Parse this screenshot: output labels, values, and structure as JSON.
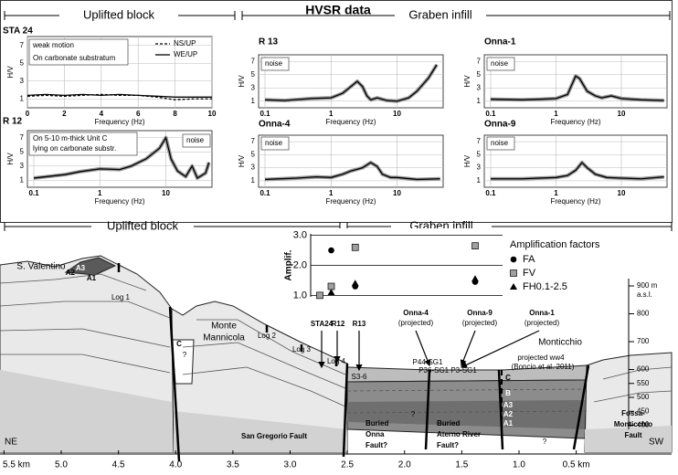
{
  "header": {
    "title": "HVSR data",
    "left_block": "Uplifted block",
    "right_block": "Graben infill"
  },
  "chart_data": [
    {
      "type": "line",
      "title": "STA 24",
      "xlabel": "Frequency (Hz)",
      "ylabel": "H/V",
      "x": [
        0,
        1,
        2,
        3,
        4,
        5,
        6,
        7,
        8,
        9,
        10
      ],
      "xscale": "linear",
      "xlim": [
        0,
        10
      ],
      "xticks": [
        0,
        2,
        4,
        6,
        8,
        10
      ],
      "ylim": [
        0,
        8
      ],
      "yticks": [
        1,
        3,
        5,
        7
      ],
      "grid": true,
      "annotations": [
        "weak motion",
        "On carbonate substratum"
      ],
      "series": [
        {
          "name": "NS/UP",
          "color": "#000000",
          "dash": true,
          "values": [
            1.3,
            1.4,
            1.3,
            1.4,
            1.5,
            1.4,
            1.4,
            1.2,
            0.9,
            1.0,
            1.0
          ]
        },
        {
          "name": "WE/UP",
          "color": "#000000",
          "values": [
            1.4,
            1.5,
            1.4,
            1.5,
            1.4,
            1.5,
            1.4,
            1.3,
            1.2,
            1.2,
            1.2
          ]
        }
      ]
    },
    {
      "type": "line",
      "title": "R 13",
      "xlabel": "Frequency (Hz)",
      "ylabel": "H/V",
      "x": [
        0.1,
        0.2,
        0.5,
        1,
        1.5,
        2,
        2.5,
        3,
        3.5,
        4,
        5,
        7,
        10,
        15,
        20,
        30,
        40
      ],
      "xscale": "log",
      "xlim": [
        0.08,
        50
      ],
      "xticks": [
        0.1,
        1,
        10
      ],
      "ylim": [
        0,
        8
      ],
      "yticks": [
        1,
        3,
        5,
        7
      ],
      "grid": true,
      "annotations": [
        "noise"
      ],
      "series": [
        {
          "color": "#000000",
          "shade": true,
          "values": [
            1.2,
            1.1,
            1.4,
            1.5,
            2.2,
            3.2,
            4.0,
            3.2,
            1.8,
            1.2,
            1.5,
            1.1,
            1.0,
            1.5,
            2.5,
            4.5,
            6.5
          ]
        }
      ]
    },
    {
      "type": "line",
      "title": "Onna-1",
      "xlabel": "Frequency (Hz)",
      "ylabel": "H/V",
      "x": [
        0.1,
        0.3,
        0.6,
        1,
        1.5,
        2,
        2.3,
        3,
        4,
        5,
        7,
        10,
        20,
        45
      ],
      "xscale": "log",
      "xlim": [
        0.08,
        50
      ],
      "xticks": [
        0.1,
        1,
        10
      ],
      "ylim": [
        0,
        8
      ],
      "yticks": [
        1,
        3,
        5,
        7
      ],
      "grid": true,
      "annotations": [
        "noise"
      ],
      "series": [
        {
          "color": "#000000",
          "shade": true,
          "values": [
            1.3,
            1.2,
            1.3,
            1.4,
            2.0,
            4.8,
            4.4,
            2.5,
            1.8,
            1.5,
            1.8,
            1.4,
            1.2,
            1.1
          ]
        }
      ]
    },
    {
      "type": "line",
      "title": "R 12",
      "xlabel": "Frequency (Hz)",
      "ylabel": "H/V",
      "x": [
        0.1,
        0.3,
        0.5,
        1,
        2,
        3,
        5,
        8,
        10,
        12,
        15,
        20,
        25,
        30,
        40,
        45
      ],
      "xscale": "log",
      "xlim": [
        0.08,
        50
      ],
      "xticks": [
        0.1,
        1,
        10
      ],
      "ylim": [
        0,
        8
      ],
      "yticks": [
        1,
        3,
        5,
        7
      ],
      "grid": true,
      "annotations": [
        "On 5-10 m-thick Unit C",
        "lying on carbonate substr.",
        "noise"
      ],
      "series": [
        {
          "color": "#000000",
          "shade": true,
          "values": [
            1.3,
            1.8,
            2.2,
            2.6,
            2.5,
            3.0,
            4.0,
            5.5,
            7.0,
            4.0,
            2.3,
            1.5,
            3.0,
            1.3,
            2.0,
            3.5
          ]
        }
      ]
    },
    {
      "type": "line",
      "title": "Onna-4",
      "xlabel": "Frequency (Hz)",
      "ylabel": "H/V",
      "x": [
        0.1,
        0.3,
        0.6,
        1,
        1.5,
        2,
        3,
        4,
        5,
        6,
        8,
        10,
        20,
        45
      ],
      "xscale": "log",
      "xlim": [
        0.08,
        50
      ],
      "xticks": [
        0.1,
        1,
        10
      ],
      "ylim": [
        0,
        8
      ],
      "yticks": [
        1,
        3,
        5,
        7
      ],
      "grid": true,
      "annotations": [
        "noise"
      ],
      "series": [
        {
          "color": "#000000",
          "shade": true,
          "values": [
            1.2,
            1.4,
            1.6,
            1.5,
            2.0,
            2.5,
            3.0,
            3.8,
            3.2,
            2.0,
            1.5,
            1.5,
            1.2,
            1.3
          ]
        }
      ]
    },
    {
      "type": "line",
      "title": "Onna-9",
      "xlabel": "Frequency (Hz)",
      "ylabel": "H/V",
      "x": [
        0.1,
        0.3,
        1,
        1.5,
        2,
        2.5,
        3,
        4,
        6,
        10,
        20,
        45
      ],
      "xscale": "log",
      "xlim": [
        0.08,
        50
      ],
      "xticks": [
        0.1,
        1,
        10
      ],
      "ylim": [
        0,
        8
      ],
      "yticks": [
        1,
        3,
        5,
        7
      ],
      "grid": true,
      "annotations": [
        "noise"
      ],
      "series": [
        {
          "color": "#000000",
          "shade": true,
          "values": [
            1.3,
            1.3,
            1.5,
            1.8,
            2.6,
            3.8,
            3.0,
            2.0,
            1.5,
            1.4,
            1.3,
            1.6
          ]
        }
      ]
    },
    {
      "type": "scatter",
      "ylabel": "Amplif.",
      "legend_title": "Amplification factors",
      "x": [
        2.72,
        2.62,
        2.41,
        1.36
      ],
      "xlim": [
        2.8,
        1.12
      ],
      "ylim": [
        0.95,
        3.05
      ],
      "yticks": [
        {
          "value": 1,
          "label": "1.0"
        },
        {
          "value": 2,
          "label": "2.0"
        },
        {
          "value": 3,
          "label": "3.0"
        }
      ],
      "grid": true,
      "series": [
        {
          "name": "FA",
          "marker": "circle",
          "color": "#000000",
          "values": [
            null,
            2.5,
            1.3,
            1.45
          ]
        },
        {
          "name": "FV",
          "marker": "square",
          "color": "#a0a0a0",
          "values": [
            1.0,
            1.3,
            2.6,
            2.65
          ]
        },
        {
          "name": "FH0.1-2.5",
          "marker": "triangle",
          "color": "#000000",
          "values": [
            null,
            1.1,
            1.4,
            1.55
          ]
        }
      ]
    }
  ],
  "section": {
    "left_block": "Uplifted block",
    "right_block": "Graben infill",
    "labels": [
      "S. Valentino",
      "Monte",
      "Mannicola",
      "Monticchio",
      "Log 1",
      "Log 2",
      "Log 3",
      "Log 4",
      "S3-6",
      "P44-SG1",
      "P36-SG1 P3-SG1",
      "projected ww4",
      "(Boncio et al. 2011)",
      "San Gregorio  Fault",
      "Buried",
      "Onna",
      "Fault?",
      "Buried",
      "Aterno River",
      "Fault?",
      "Fossa-",
      "Monticchio",
      "Fault",
      "NE",
      "SW",
      "STA24",
      "R12",
      "R13",
      "Onna-4",
      "(projected)",
      "Onna-9",
      "(projected)",
      "Onna-1",
      "(projected)"
    ],
    "units": [
      "A3",
      "A2",
      "A1",
      "C",
      "?",
      "C",
      "B",
      "A3",
      "A2",
      "A1",
      "?",
      "?"
    ],
    "elevation_ticks": [
      {
        "value": 900,
        "label": "900 m"
      },
      800,
      700,
      600,
      550,
      500,
      450,
      400
    ],
    "elevation_unit": "a.s.l.",
    "distance_ticks": [
      {
        "value": 5.5,
        "label": "5.5 km"
      },
      {
        "value": 5,
        "label": "5.0"
      },
      4.5,
      {
        "value": 4,
        "label": "4.0"
      },
      3.5,
      {
        "value": 3,
        "label": "3.0"
      },
      2.5,
      {
        "value": 2,
        "label": "2.0"
      },
      1.5,
      {
        "value": 1,
        "label": "1.0"
      },
      {
        "value": 0.5,
        "label": "0.5 km"
      }
    ]
  }
}
